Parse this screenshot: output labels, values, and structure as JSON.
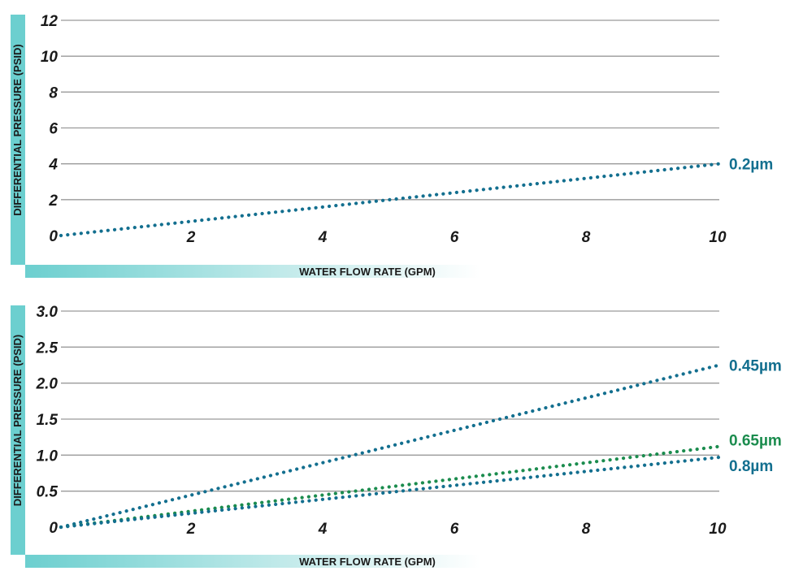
{
  "colors": {
    "blue": "#136f8f",
    "green": "#1b8c4e",
    "band": "#6ccfcf",
    "grid": "#9a9a9a"
  },
  "chart_data": [
    {
      "type": "line",
      "title": "",
      "xlabel": "WATER FLOW RATE (GPM)",
      "ylabel": "DIFFERENTIAL PRESSURE (PSID)",
      "xlim": [
        0,
        10
      ],
      "ylim": [
        0,
        12
      ],
      "x_ticks": [
        0,
        2,
        4,
        6,
        8,
        10
      ],
      "x_tick_labels": [
        "0",
        "2",
        "4",
        "6",
        "8",
        "10"
      ],
      "y_ticks": [
        0,
        2,
        4,
        6,
        8,
        10,
        12
      ],
      "y_tick_labels": [
        "0",
        "2",
        "4",
        "6",
        "8",
        "10",
        "12"
      ],
      "grid": true,
      "series": [
        {
          "name": "0.2µm",
          "color": "blue",
          "x": [
            0,
            10
          ],
          "y": [
            0,
            4.0
          ]
        }
      ]
    },
    {
      "type": "line",
      "title": "",
      "xlabel": "WATER FLOW RATE (GPM)",
      "ylabel": "DIFFERENTIAL PRESSURE (PSID)",
      "xlim": [
        0,
        10
      ],
      "ylim": [
        0,
        3.0
      ],
      "x_ticks": [
        0,
        2,
        4,
        6,
        8,
        10
      ],
      "x_tick_labels": [
        "0",
        "2",
        "4",
        "6",
        "8",
        "10"
      ],
      "y_ticks": [
        0,
        0.5,
        1.0,
        1.5,
        2.0,
        2.5,
        3.0
      ],
      "y_tick_labels": [
        "0",
        "0.5",
        "1.0",
        "1.5",
        "2.0",
        "2.5",
        "3.0"
      ],
      "grid": true,
      "series": [
        {
          "name": "0.45µm",
          "color": "blue",
          "x": [
            0,
            10
          ],
          "y": [
            0,
            2.25
          ]
        },
        {
          "name": "0.65µm",
          "color": "green",
          "x": [
            0,
            10
          ],
          "y": [
            0,
            1.12
          ]
        },
        {
          "name": "0.8µm",
          "color": "blue",
          "x": [
            0,
            10
          ],
          "y": [
            0,
            0.97
          ]
        }
      ]
    }
  ]
}
